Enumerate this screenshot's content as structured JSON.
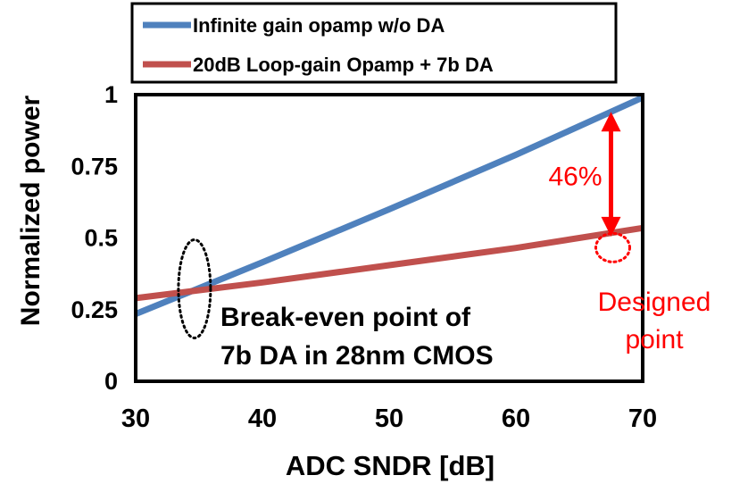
{
  "chart_data": {
    "type": "line",
    "xlabel": "ADC SNDR [dB]",
    "ylabel": "Normalized power",
    "xlim": [
      30,
      70
    ],
    "ylim": [
      0,
      1
    ],
    "x_ticks": [
      "30",
      "40",
      "50",
      "60",
      "70"
    ],
    "y_ticks": [
      "0",
      "0.25",
      "0.5",
      "0.75",
      "1"
    ],
    "x_tick_values": [
      30,
      40,
      50,
      60,
      70
    ],
    "y_tick_values": [
      0,
      0.25,
      0.5,
      0.75,
      1
    ],
    "grid": false,
    "legend_position": "top",
    "series": [
      {
        "name": "Infinite gain opamp w/o DA",
        "color": "#4F81BD",
        "x": [
          30,
          40,
          50,
          60,
          70
        ],
        "y": [
          0.235,
          0.415,
          0.6,
          0.79,
          0.99
        ]
      },
      {
        "name": "20dB Loop-gain Opamp + 7b DA",
        "color": "#C0504D",
        "x": [
          30,
          40,
          50,
          60,
          70
        ],
        "y": [
          0.29,
          0.345,
          0.405,
          0.465,
          0.535
        ]
      }
    ],
    "annotations": {
      "percent_label": "46%",
      "percent_at_x": 67.5,
      "break_even_line1": "Break-even point of",
      "break_even_line2": "7b DA in 28nm CMOS",
      "break_even_x": 34.5,
      "break_even_y": 0.31,
      "designed_line1": "Designed",
      "designed_line2": "point",
      "designed_x": 67.5,
      "designed_y": 0.46,
      "annotation_color": "#FF0000"
    }
  }
}
